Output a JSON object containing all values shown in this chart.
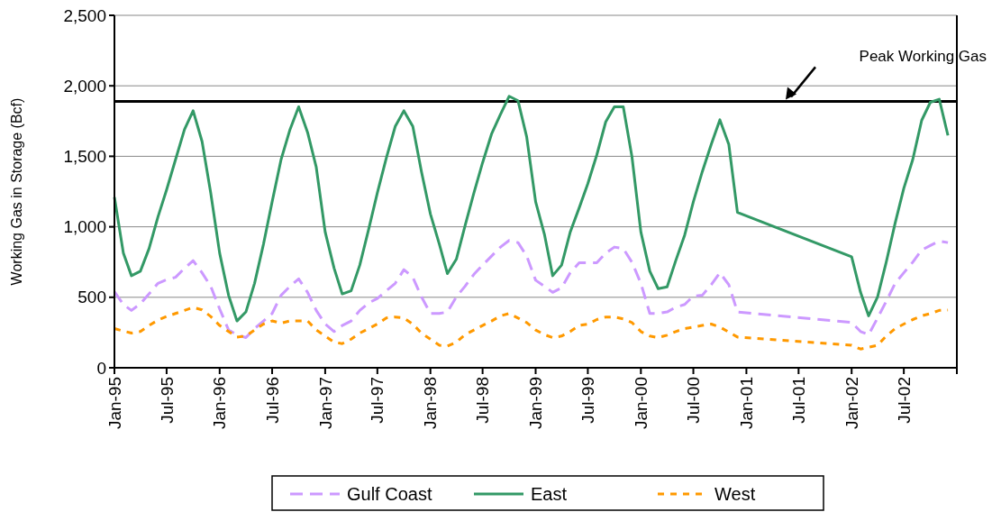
{
  "chart_data": {
    "type": "line",
    "ylabel": "Working Gas in Storage (Bcf)",
    "x": [
      "1995-01",
      "1995-02",
      "1995-03",
      "1995-04",
      "1995-05",
      "1995-06",
      "1995-07",
      "1995-08",
      "1995-09",
      "1995-10",
      "1995-11",
      "1995-12",
      "1996-01",
      "1996-02",
      "1996-03",
      "1996-04",
      "1996-05",
      "1996-06",
      "1996-07",
      "1996-08",
      "1996-09",
      "1996-10",
      "1996-11",
      "1996-12",
      "1997-01",
      "1997-02",
      "1997-03",
      "1997-04",
      "1997-05",
      "1997-06",
      "1997-07",
      "1997-08",
      "1997-09",
      "1997-10",
      "1997-11",
      "1997-12",
      "1998-01",
      "1998-02",
      "1998-03",
      "1998-04",
      "1998-05",
      "1998-06",
      "1998-07",
      "1998-08",
      "1998-09",
      "1998-10",
      "1998-11",
      "1998-12",
      "1999-01",
      "1999-02",
      "1999-03",
      "1999-04",
      "1999-05",
      "1999-06",
      "1999-07",
      "1999-08",
      "1999-09",
      "1999-10",
      "1999-11",
      "1999-12",
      "2000-01",
      "2000-02",
      "2000-03",
      "2000-04",
      "2000-05",
      "2000-06",
      "2000-07",
      "2000-08",
      "2000-09",
      "2000-10",
      "2000-11",
      "2000-12",
      "2002-01",
      "2002-02",
      "2002-03",
      "2002-04",
      "2002-05",
      "2002-06",
      "2002-07",
      "2002-08",
      "2002-09",
      "2002-10",
      "2002-11",
      "2002-12"
    ],
    "series": [
      {
        "name": "Gulf Coast",
        "color": "#cc99ff",
        "line_style": "dashed",
        "values": [
          539,
          449,
          407,
          454,
          524,
          599,
          625,
          642,
          706,
          760,
          674,
          578,
          417,
          268,
          235,
          214,
          278,
          332,
          385,
          514,
          578,
          631,
          535,
          407,
          310,
          257,
          300,
          332,
          407,
          460,
          492,
          546,
          599,
          696,
          642,
          503,
          385,
          385,
          396,
          503,
          578,
          663,
          728,
          792,
          856,
          903,
          888,
          792,
          621,
          578,
          535,
          567,
          674,
          745,
          745,
          745,
          813,
          856,
          845,
          749,
          599,
          385,
          385,
          396,
          430,
          449,
          509,
          514,
          589,
          674,
          589,
          396,
          321,
          257,
          235,
          353,
          471,
          599,
          674,
          749,
          835,
          867,
          899,
          888
        ]
      },
      {
        "name": "East",
        "color": "#339966",
        "line_style": "solid",
        "values": [
          1210,
          813,
          653,
          685,
          845,
          1070,
          1263,
          1477,
          1690,
          1823,
          1605,
          1241,
          813,
          514,
          332,
          396,
          599,
          877,
          1177,
          1477,
          1690,
          1851,
          1669,
          1423,
          963,
          706,
          524,
          546,
          728,
          984,
          1241,
          1487,
          1712,
          1823,
          1712,
          1391,
          1091,
          877,
          668,
          770,
          1006,
          1241,
          1455,
          1658,
          1797,
          1926,
          1894,
          1637,
          1177,
          942,
          653,
          728,
          963,
          1134,
          1306,
          1509,
          1744,
          1851,
          1851,
          1498,
          963,
          685,
          561,
          574,
          760,
          942,
          1177,
          1391,
          1584,
          1759,
          1584,
          1102,
          787,
          535,
          368,
          503,
          749,
          1027,
          1273,
          1477,
          1755,
          1883,
          1905,
          1648
        ]
      },
      {
        "name": "West",
        "color": "#ff9900",
        "line_style": "dotted",
        "values": [
          278,
          261,
          246,
          257,
          300,
          338,
          364,
          385,
          407,
          428,
          411,
          364,
          300,
          257,
          218,
          225,
          268,
          310,
          332,
          317,
          332,
          332,
          332,
          268,
          225,
          182,
          171,
          203,
          246,
          278,
          310,
          353,
          360,
          353,
          310,
          246,
          203,
          160,
          154,
          182,
          235,
          268,
          300,
          332,
          368,
          385,
          353,
          321,
          268,
          235,
          214,
          225,
          257,
          300,
          310,
          342,
          360,
          360,
          347,
          321,
          257,
          225,
          214,
          231,
          257,
          278,
          289,
          300,
          310,
          289,
          253,
          218,
          160,
          133,
          146,
          160,
          225,
          278,
          310,
          342,
          368,
          385,
          407,
          410
        ]
      }
    ],
    "xlim": [
      "1995-01",
      "2003-01"
    ],
    "xticks": [
      {
        "value": "1995-01",
        "label": "Jan-95"
      },
      {
        "value": "1995-07",
        "label": "Jul-95"
      },
      {
        "value": "1996-01",
        "label": "Jan-96"
      },
      {
        "value": "1996-07",
        "label": "Jul-96"
      },
      {
        "value": "1997-01",
        "label": "Jan-97"
      },
      {
        "value": "1997-07",
        "label": "Jul-97"
      },
      {
        "value": "1998-01",
        "label": "Jan-98"
      },
      {
        "value": "1998-07",
        "label": "Jul-98"
      },
      {
        "value": "1999-01",
        "label": "Jan-99"
      },
      {
        "value": "1999-07",
        "label": "Jul-99"
      },
      {
        "value": "2000-01",
        "label": "Jan-00"
      },
      {
        "value": "2000-07",
        "label": "Jul-00"
      },
      {
        "value": "2001-01",
        "label": "Jan-01"
      },
      {
        "value": "2001-07",
        "label": "Jul-01"
      },
      {
        "value": "2002-01",
        "label": "Jan-02"
      },
      {
        "value": "2002-07",
        "label": "Jul-02"
      },
      {
        "value": "2003-01",
        "label": null
      }
    ],
    "ylim": [
      0,
      2500
    ],
    "yticks": [
      0,
      {
        "value": 500,
        "label": "500"
      },
      {
        "value": 1000,
        "label": "1,000"
      },
      {
        "value": 1500,
        "label": "1,500"
      },
      {
        "value": 2000,
        "label": "2,000"
      },
      {
        "value": 2500,
        "label": "2,500"
      }
    ],
    "grid": "y",
    "legend": "bottom",
    "marker": "none",
    "ref_lines": [
      {
        "axis": "y",
        "value": 1890,
        "label": "Peak Working Gas",
        "color": "#000000"
      }
    ]
  }
}
